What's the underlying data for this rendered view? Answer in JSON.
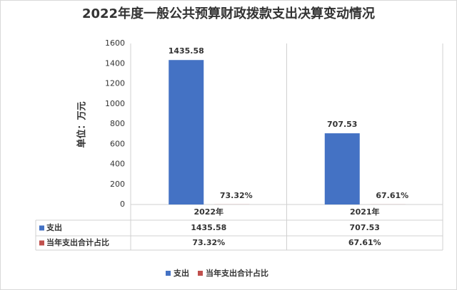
{
  "chart_data": {
    "type": "bar",
    "title": "2022年度一般公共预算财政拨款支出决算变动情况",
    "y_label": "单位：万元",
    "categories": [
      "2022年",
      "2021年"
    ],
    "series": [
      {
        "name": "支出",
        "color": "#4472c4",
        "values": [
          1435.58,
          707.53
        ]
      },
      {
        "name": "当年支出合计占比",
        "color": "#c0504d",
        "values": [
          0.7332,
          0.6761
        ],
        "value_labels": [
          "73.32%",
          "67.61%"
        ]
      }
    ],
    "ylim": [
      0,
      1600
    ],
    "yticks": [
      0,
      200,
      400,
      600,
      800,
      1000,
      1200,
      1400,
      1600
    ],
    "grid": false
  }
}
